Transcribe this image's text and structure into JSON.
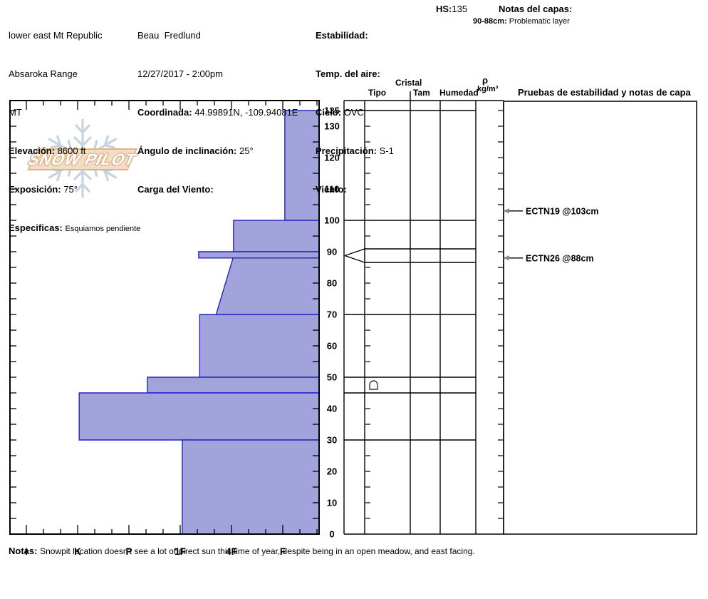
{
  "header": {
    "location_line1": "lower east Mt Republic",
    "location_line2": "Absaroka Range",
    "location_line3": "MT",
    "elevation_label": "Elevación:",
    "elevation_value": "8600 ft",
    "aspect_label": "Exposición:",
    "aspect_value": "75°",
    "specifics_label": "Especificas:",
    "specifics_value": "Esquiamos pendiente",
    "observer": "Beau  Fredlund",
    "datetime": "12/27/2017 - 2:00pm",
    "coord_label": "Coordinada:",
    "coord_value": "44.99891N, -109.94081E",
    "slope_label": "Ángulo de inclinación:",
    "slope_value": "25°",
    "windload_label": "Carga del Viento:",
    "stability_label": "Estabilidad:",
    "airtemp_label": "Temp. del aire:",
    "sky_label": "Cielo:",
    "sky_value": "OVC",
    "precip_label": "Precipitación:",
    "precip_value": "S-1",
    "wind_label": "Viento:",
    "hs_label": "HS:",
    "hs_value": "135",
    "layer_notes_label": "Notas del capas:",
    "layer_note_range": "90-88cm:",
    "layer_note_text": "Problematic layer"
  },
  "columns": {
    "cristal": "Cristal",
    "tipo": "Tipo",
    "tam": "Tam",
    "humedad": "Humedad",
    "rho": "ρ",
    "rho_units": "kg/m³",
    "pruebas": "Pruebas de estabilidad y notas de capa"
  },
  "logo_text": "SNOW PILOT",
  "footer": {
    "label": "Notas:",
    "text": "Snowpit location doesn't see a lot of direct sun this time of year, despite being in an open meadow, and east facing."
  },
  "colors": {
    "bar_fill": "#a3a3dc",
    "bar_stroke": "#2424bc",
    "arrow_gray": "#8a8a8a",
    "banner_fill": "#f4dcc0",
    "banner_border": "#dcb48e",
    "snowflake": "#c6d4e2"
  },
  "chart_data": {
    "type": "area",
    "description": "Snow hardness profile: hand hardness vs depth (cm)",
    "depth_unit": "cm",
    "total_depth_cm": 135,
    "depth_ticks": [
      135,
      130,
      120,
      110,
      100,
      90,
      80,
      70,
      60,
      50,
      40,
      30,
      20,
      10,
      0
    ],
    "hardness_categories": [
      "I",
      "K",
      "P",
      "1F",
      "4F",
      "F"
    ],
    "layers": [
      {
        "from_cm": 135,
        "to_cm": 100,
        "hardness": "F",
        "h_top": 5.04,
        "h_bot": 5.04
      },
      {
        "from_cm": 100,
        "to_cm": 90,
        "hardness": "4F",
        "h_top": 4.04,
        "h_bot": 4.04
      },
      {
        "from_cm": 90,
        "to_cm": 88,
        "hardness": "1F/4F",
        "h_top": 3.36,
        "h_bot": 3.36,
        "pinch_marker": true,
        "note": "Problematic layer"
      },
      {
        "from_cm": 88,
        "to_cm": 70,
        "hardness": "4F",
        "h_top": 4.03,
        "h_bot": 3.7
      },
      {
        "from_cm": 70,
        "to_cm": 50,
        "hardness": "1F/4F",
        "h_top": 3.38,
        "h_bot": 3.38
      },
      {
        "from_cm": 50,
        "to_cm": 45,
        "hardness": "P/1F",
        "h_top": 2.36,
        "h_bot": 2.36,
        "grain_symbol": "rounding-facets"
      },
      {
        "from_cm": 45,
        "to_cm": 30,
        "hardness": "K",
        "h_top": 1.03,
        "h_bot": 1.03
      },
      {
        "from_cm": 30,
        "to_cm": 0,
        "hardness": "1F",
        "h_top": 3.04,
        "h_bot": 3.04
      }
    ],
    "stability_tests": [
      {
        "label": "ECTN19 @103cm",
        "depth_cm": 103
      },
      {
        "label": "ECTN26 @88cm",
        "depth_cm": 88
      }
    ]
  }
}
